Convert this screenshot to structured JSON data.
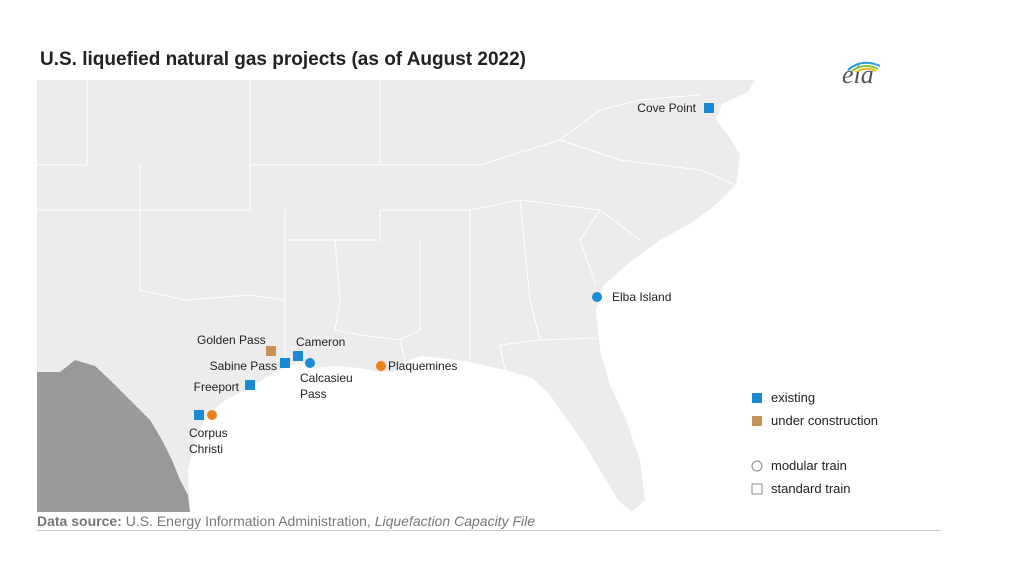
{
  "title": "U.S. liquefied natural gas projects (as of August 2022)",
  "logo": "eia",
  "sites": [
    {
      "label": "Cove Point",
      "markers": [
        {
          "shape": "square",
          "color": "#1a8ad4"
        }
      ]
    },
    {
      "label": "Elba Island",
      "markers": [
        {
          "shape": "circle",
          "color": "#1a8ad4"
        }
      ]
    },
    {
      "label": "Golden Pass",
      "markers": [
        {
          "shape": "square",
          "color": "#c8915a"
        }
      ]
    },
    {
      "label": "Cameron",
      "markers": [
        {
          "shape": "square",
          "color": "#1a8ad4"
        }
      ]
    },
    {
      "label": "Sabine Pass",
      "markers": [
        {
          "shape": "square",
          "color": "#1a8ad4"
        }
      ]
    },
    {
      "label": "Calcasieu Pass",
      "markers": [
        {
          "shape": "circle",
          "color": "#1a8ad4"
        }
      ]
    },
    {
      "label": "Plaquemines",
      "markers": [
        {
          "shape": "circle",
          "color": "#f07f1c"
        }
      ]
    },
    {
      "label": "Freeport",
      "markers": [
        {
          "shape": "square",
          "color": "#1a8ad4"
        }
      ]
    },
    {
      "label": "Corpus Christi",
      "markers": [
        {
          "shape": "square",
          "color": "#1a8ad4"
        },
        {
          "shape": "circle",
          "color": "#f07f1c"
        }
      ]
    }
  ],
  "legend": [
    {
      "label": "existing",
      "shape": "square",
      "color": "#1a8ad4"
    },
    {
      "label": "under construction",
      "shape": "square",
      "color": "#c8915a"
    },
    {
      "label": "modular train",
      "shape": "circle-outline",
      "color": "#888888"
    },
    {
      "label": "standard train",
      "shape": "square-outline",
      "color": "#888888"
    }
  ],
  "source": {
    "prefix": "Data source:",
    "text": "U.S. Energy Information Administration,",
    "file": "Liquefaction Capacity File"
  }
}
